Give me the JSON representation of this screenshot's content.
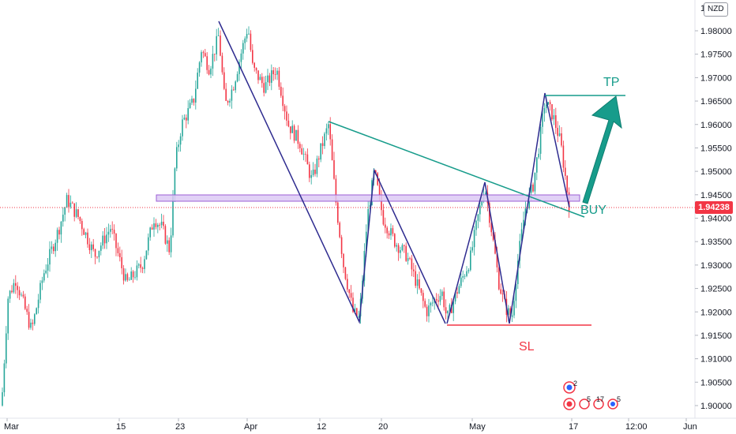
{
  "chart_data": {
    "type": "candlestick",
    "currency": "NZD",
    "last_price": "1.94238",
    "price_axis": {
      "range": [
        1.8975,
        1.9855
      ],
      "ticks": [
        "1.98000",
        "1.97500",
        "1.97000",
        "1.96500",
        "1.96000",
        "1.95500",
        "1.95000",
        "1.94500",
        "1.94000",
        "1.93500",
        "1.93000",
        "1.92500",
        "1.92000",
        "1.91500",
        "1.91000",
        "1.90500",
        "1.90000"
      ],
      "top_partial_tick": "1"
    },
    "time_axis": {
      "ticks": [
        "Mar",
        "15",
        "23",
        "Apr",
        "12",
        "20",
        "May",
        "17",
        "12:00",
        "Jun"
      ]
    },
    "colors": {
      "up": "#26a69a",
      "down": "#f23645",
      "pattern_line": "#2e2b8f",
      "trendline": "#179c8b",
      "resistance_zone_fill": "#dcc9f5",
      "resistance_zone_stroke": "#9c5fd4",
      "stop_line": "#f23645"
    },
    "annotations": {
      "tp_label": "TP",
      "buy_label": "BUY",
      "sl_label": "SL"
    },
    "pattern": {
      "type": "W / double bottom, descending trendline breakout",
      "buy_price": 1.9424,
      "take_profit": 1.9662,
      "stop_loss": 1.9172,
      "support_resistance_zone": [
        1.9438,
        1.9452
      ]
    },
    "swing_path_1": [
      [
        1.9818,
        0
      ],
      [
        1.9178,
        1
      ],
      [
        1.9505,
        2
      ],
      [
        1.9175,
        3
      ]
    ],
    "swing_path_2": [
      [
        1.9172,
        0
      ],
      [
        1.9482,
        1
      ],
      [
        1.9172,
        2
      ],
      [
        1.9668,
        3
      ],
      [
        1.9425,
        4
      ]
    ],
    "events": {
      "group_a": "2",
      "group_b": [
        "5",
        "17",
        "5"
      ]
    }
  }
}
